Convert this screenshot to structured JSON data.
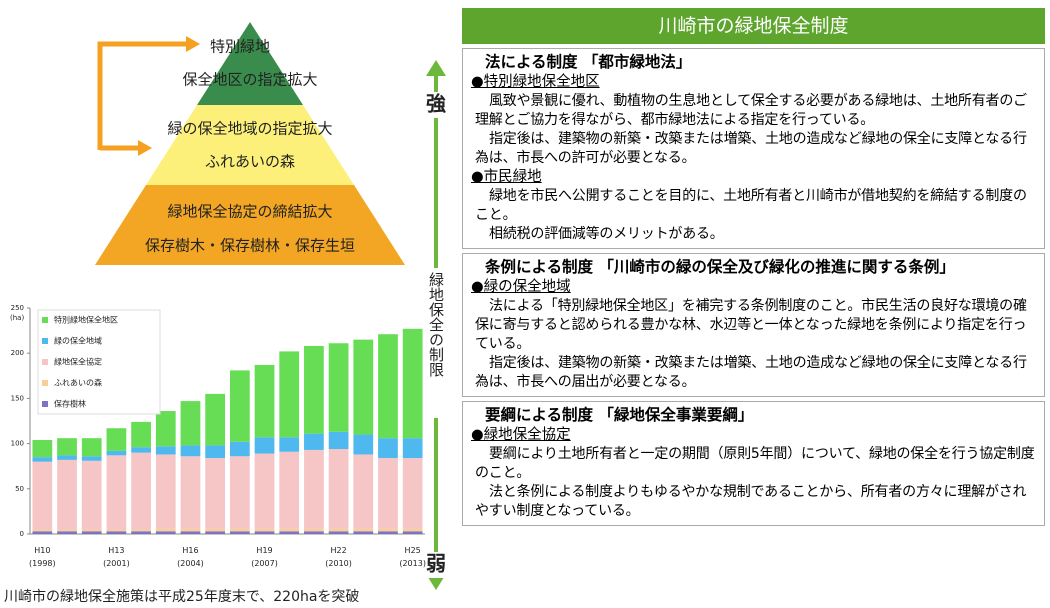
{
  "pyramid": {
    "labels": [
      "特別緑地",
      "保全地区の指定拡大",
      "緑の保全地域の指定拡大",
      "ふれあいの森",
      "緑地保全協定の締結拡大",
      "保存樹木・保存樹林・保存生垣"
    ]
  },
  "scale": {
    "strong": "強",
    "weak": "弱",
    "label": "緑地保全の制限"
  },
  "chart_data": {
    "type": "bar",
    "stacked": true,
    "y_label": "(ha)",
    "categories": [
      "H10 (1998)",
      null,
      null,
      "H13 (2001)",
      null,
      null,
      "H16 (2004)",
      null,
      null,
      "H19 (2007)",
      null,
      null,
      "H22 (2010)",
      null,
      null,
      "H25 (2013)"
    ],
    "series": [
      {
        "name": "保存樹林",
        "color": "#7e72c8",
        "values": [
          3,
          3,
          3,
          3,
          3,
          3,
          3,
          3,
          3,
          3,
          3,
          3,
          3,
          3,
          3,
          3
        ]
      },
      {
        "name": "ふれあいの森",
        "color": "#f9cf98",
        "values": [
          2,
          2,
          2,
          2,
          2,
          3,
          3,
          3,
          3,
          3,
          3,
          3,
          3,
          3,
          3,
          3
        ]
      },
      {
        "name": "緑地保全協定",
        "color": "#f6c6c6",
        "values": [
          75,
          77,
          76,
          82,
          85,
          82,
          80,
          78,
          80,
          83,
          85,
          87,
          88,
          82,
          78,
          78
        ]
      },
      {
        "name": "緑の保全地域",
        "color": "#4fb8ee",
        "values": [
          5,
          5,
          5,
          5,
          6,
          9,
          12,
          14,
          16,
          18,
          16,
          18,
          19,
          22,
          22,
          22
        ]
      },
      {
        "name": "特別緑地保全地区",
        "color": "#66dd55",
        "values": [
          19,
          19,
          20,
          25,
          28,
          39,
          49,
          57,
          79,
          80,
          95,
          97,
          98,
          105,
          115,
          121
        ]
      }
    ],
    "ylim": [
      0,
      250
    ],
    "yticks": [
      0,
      50,
      100,
      150,
      200,
      250
    ],
    "legend": "upper left",
    "caption": "川崎市の緑地保全施策は平成25年度末で、220haを突破"
  },
  "panel": {
    "title": "川崎市の緑地保全制度",
    "sections": [
      {
        "heading": "法による制度 「都市緑地法」",
        "items": [
          {
            "label": "●特別緑地保全地区",
            "paragraphs": [
              "風致や景観に優れ、動植物の生息地として保全する必要がある緑地は、土地所有者のご理解とご協力を得ながら、都市緑地法による指定を行っている。",
              "指定後は、建築物の新築・改築または増築、土地の造成など緑地の保全に支障となる行為は、市長への許可が必要となる。"
            ]
          },
          {
            "label": "●市民緑地",
            "paragraphs": [
              "緑地を市民へ公開することを目的に、土地所有者と川崎市が借地契約を締結する制度のこと。",
              "相続税の評価減等のメリットがある。"
            ]
          }
        ]
      },
      {
        "heading": "条例による制度 「川崎市の緑の保全及び緑化の推進に関する条例」",
        "items": [
          {
            "label": "●緑の保全地域",
            "paragraphs": [
              "法による「特別緑地保全地区」を補完する条例制度のこと。市民生活の良好な環境の確保に寄与すると認められる豊かな林、水辺等と一体となった緑地を条例により指定を行っている。",
              "指定後は、建築物の新築・改築または増築、土地の造成など緑地の保全に支障となる行為は、市長への届出が必要となる。"
            ]
          }
        ]
      },
      {
        "heading": "要綱による制度 「緑地保全事業要綱」",
        "items": [
          {
            "label": "●緑地保全協定",
            "paragraphs": [
              "要綱により土地所有者と一定の期間（原則5年間）について、緑地の保全を行う協定制度のこと。",
              "法と条例による制度よりもゆるやかな規制であることから、所有者の方々に理解がされやすい制度となっている。"
            ]
          }
        ]
      }
    ]
  }
}
